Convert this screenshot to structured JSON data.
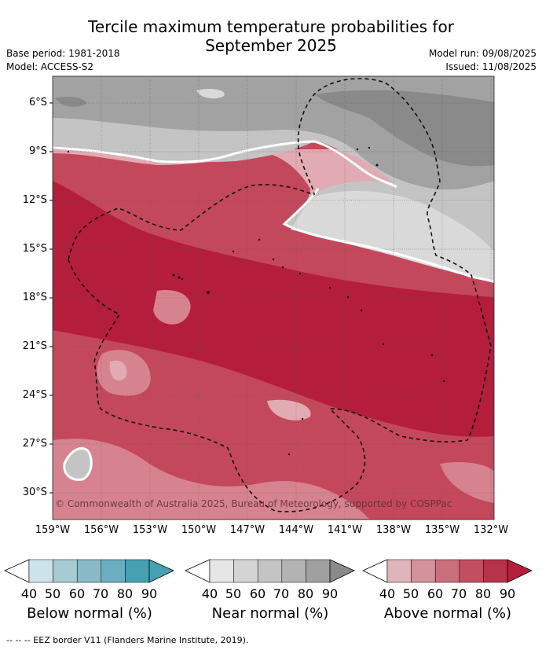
{
  "title_line1": "Tercile maximum temperature probabilities for",
  "title_line2": "September 2025",
  "base_period": "Base period: 1981-2018",
  "model": "Model: ACCESS-S2",
  "model_run": "Model run: 09/08/2025",
  "issued": "Issued: 11/08/2025",
  "map": {
    "lat_labels": [
      "6°S",
      "9°S",
      "12°S",
      "15°S",
      "18°S",
      "21°S",
      "24°S",
      "27°S",
      "30°S"
    ],
    "lon_labels": [
      "159°W",
      "156°W",
      "153°W",
      "150°W",
      "147°W",
      "144°W",
      "141°W",
      "138°W",
      "135°W",
      "132°W"
    ],
    "copyright": "© Commonwealth of Australia 2025, Bureau of Meteorology, supported by COSPPac",
    "colors": {
      "above_dark": "#b41e3c",
      "above_mid": "#c4485c",
      "above_light": "#d7838f",
      "above_pale": "#e2aab2",
      "near_dark": "#8a8a8a",
      "near_mid": "#a2a2a2",
      "near_light": "#c4c4c4",
      "near_pale": "#d9d9d9"
    }
  },
  "legend": {
    "ticks": [
      "40",
      "50",
      "60",
      "70",
      "80",
      "90"
    ],
    "below_label": "Below normal (%)",
    "near_label": "Near normal (%)",
    "above_label": "Above normal (%)",
    "below_colors": [
      "#cde3ea",
      "#a7cbd3",
      "#88b9c6",
      "#6aaebf",
      "#47a0b2"
    ],
    "near_colors": [
      "#e6e6e6",
      "#d4d4d4",
      "#c4c4c4",
      "#b3b3b3",
      "#a0a0a0"
    ],
    "above_colors": [
      "#e0b4bb",
      "#d3939c",
      "#c9707c",
      "#c0505f",
      "#b6344a"
    ]
  },
  "footnote": "--  --  -- EEZ border V11 (Flanders Marine Institute, 2019)."
}
